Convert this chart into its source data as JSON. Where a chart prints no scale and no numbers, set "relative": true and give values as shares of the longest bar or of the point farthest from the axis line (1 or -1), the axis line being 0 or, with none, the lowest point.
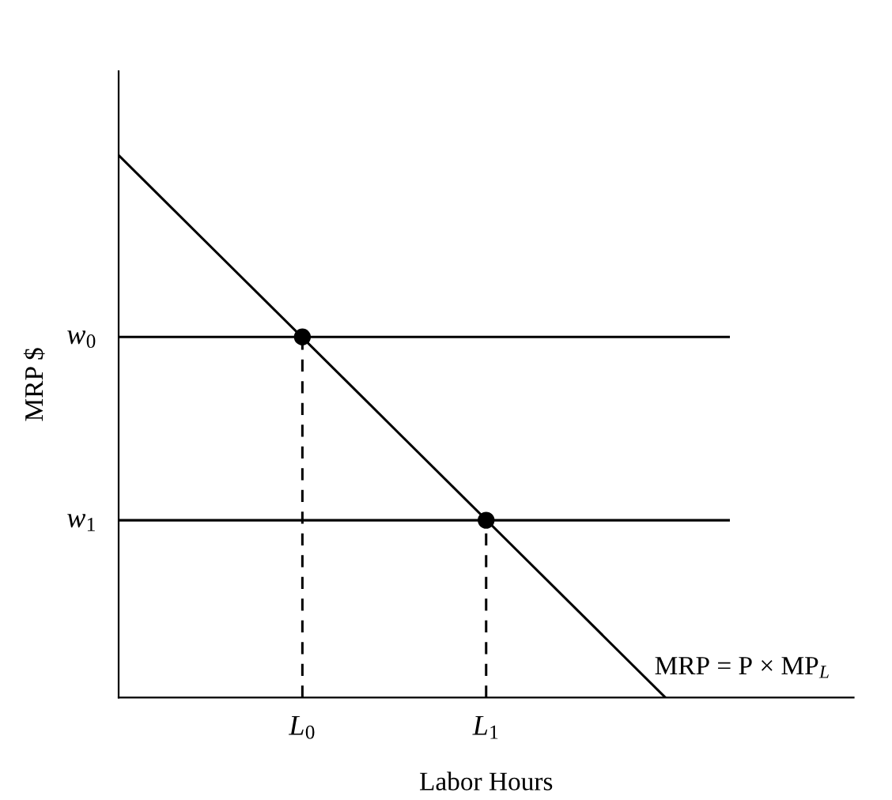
{
  "chart_data": {
    "type": "line",
    "relative": true,
    "xlabel": "Labor Hours",
    "ylabel": "MRP $",
    "xlim": [
      0,
      1
    ],
    "xticks": [
      {
        "value": 0.25,
        "label": "L$_{0}$"
      },
      {
        "value": 0.5,
        "label": "L$_{1}$"
      }
    ],
    "annotations": [
      {
        "text": "w$_{0}$",
        "x": 0,
        "y": 0.665
      },
      {
        "text": "w$_{1}$",
        "x": 0,
        "y": 0.327
      }
    ],
    "grid": false,
    "legend": false,
    "series": [
      {
        "name": "MRP = P × MP$_{L}$",
        "color": "#000000",
        "x": [
          0,
          0.744
        ],
        "values": [
          1,
          0
        ]
      },
      {
        "color": "#000000",
        "x": [
          0,
          0.83
        ],
        "values": [
          0.665,
          0.665
        ]
      },
      {
        "color": "#000000",
        "x": [
          0,
          0.83
        ],
        "values": [
          0.327,
          0.327
        ]
      },
      {
        "color": "#000000",
        "x": [
          0.25,
          0.25
        ],
        "values": [
          0,
          0.665
        ],
        "line_style": "dashed"
      },
      {
        "color": "#000000",
        "x": [
          0.5,
          0.5
        ],
        "values": [
          0,
          0.327
        ],
        "line_style": "dashed"
      },
      {
        "type": "scatter",
        "color": "#000000",
        "x": [
          0.25,
          0.5
        ],
        "values": [
          0.665,
          0.327
        ],
        "marker": "circle"
      }
    ]
  }
}
